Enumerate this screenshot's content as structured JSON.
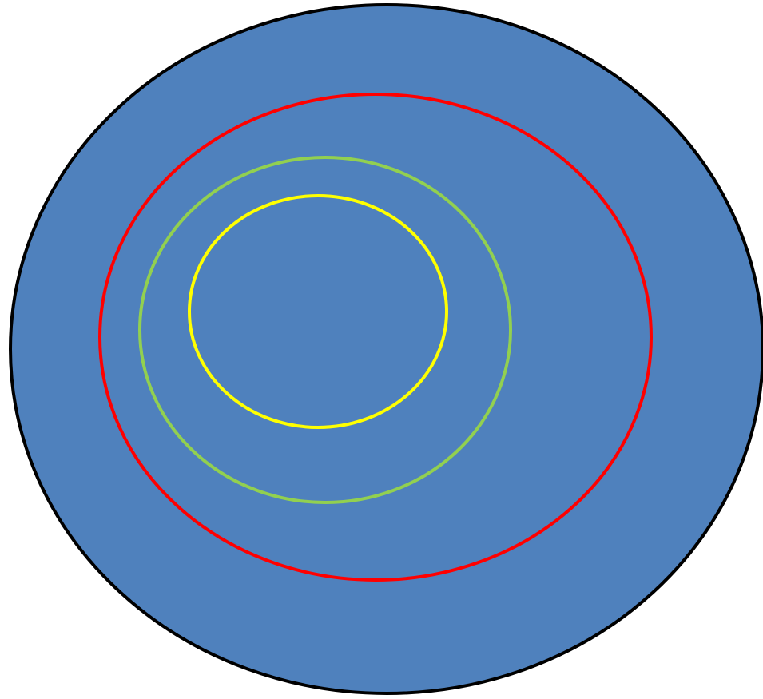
{
  "diagram": {
    "shapes": [
      {
        "id": "outer-disc",
        "kind": "filled-ellipse",
        "fill": "#4F81BD",
        "stroke": "#000000"
      },
      {
        "id": "red-ring",
        "kind": "outline-ellipse",
        "stroke": "#FF0000"
      },
      {
        "id": "green-ring",
        "kind": "outline-ellipse",
        "stroke": "#92D050"
      },
      {
        "id": "yellow-ring",
        "kind": "outline-ellipse",
        "stroke": "#FFFF00"
      }
    ],
    "background": "#FFFFFF"
  }
}
